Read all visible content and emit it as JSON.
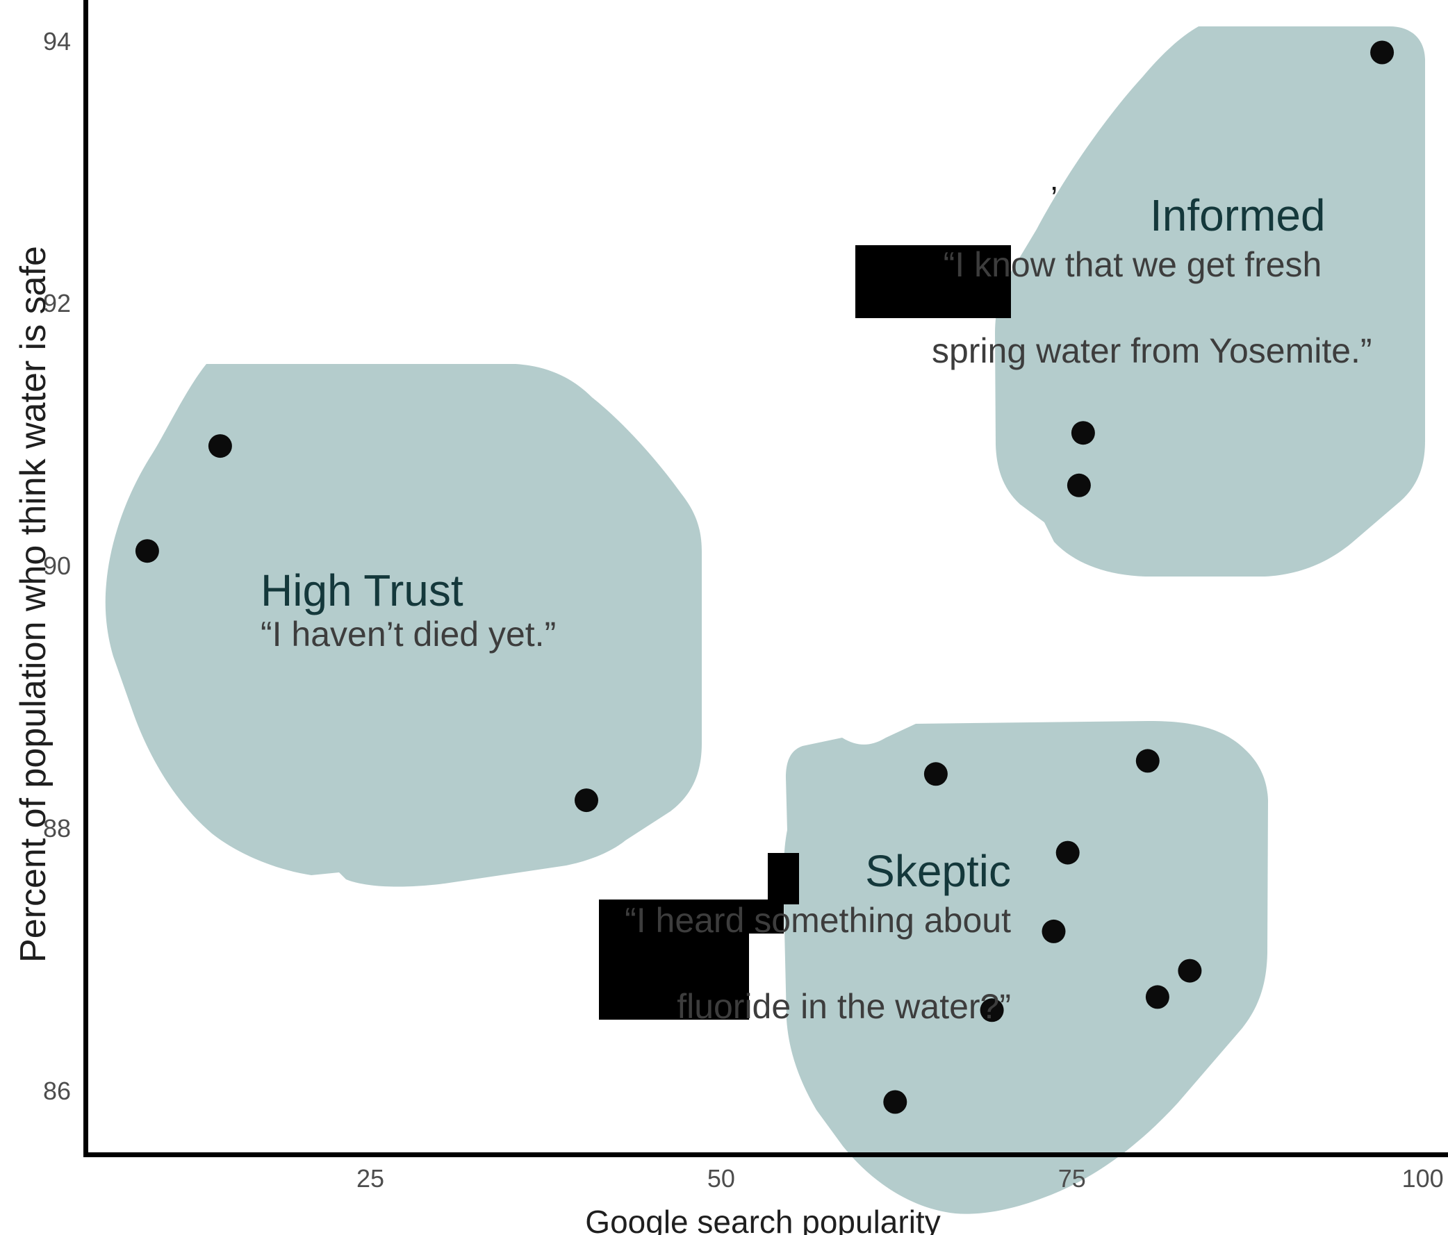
{
  "chart_data": {
    "type": "scatter",
    "title": "",
    "xlabel": "Google search popularity",
    "ylabel": "Percent of population who think water is safe",
    "xticks": [
      25,
      50,
      75,
      100
    ],
    "yticks": [
      86,
      88,
      90,
      92,
      94
    ],
    "xlim": [
      4.7,
      101.8
    ],
    "ylim": [
      85.5,
      94.3
    ],
    "grid": false,
    "legend": false,
    "panel": {
      "x0": 123,
      "y0": 0,
      "x1": 2084,
      "y1": 1662
    },
    "point_radius": 17,
    "point_color": "#0b0b0b",
    "blob_fill": "#b4cccc",
    "series": [
      {
        "name": "High Trust",
        "quote": "“I haven’t died yet.”",
        "points": [
          [
            14.3,
            90.9
          ],
          [
            9.1,
            90.1
          ],
          [
            40.4,
            88.2
          ]
        ]
      },
      {
        "name": "Informed",
        "quote": "“I know that we get fresh spring water from Yosemite.”",
        "points": [
          [
            97.1,
            93.9
          ],
          [
            75.8,
            91.0
          ],
          [
            75.5,
            90.6
          ]
        ]
      },
      {
        "name": "Skeptic",
        "quote": "“I heard something about fluoride in the water?”",
        "points": [
          [
            80.4,
            88.5
          ],
          [
            65.3,
            88.4
          ],
          [
            74.7,
            87.8
          ],
          [
            73.7,
            87.2
          ],
          [
            83.4,
            86.9
          ],
          [
            81.1,
            86.7
          ],
          [
            69.3,
            86.6
          ],
          [
            62.4,
            85.9
          ]
        ]
      }
    ]
  },
  "annotations": {
    "high_trust": {
      "title": "High Trust",
      "quote_line1": "“I haven’t died yet.”"
    },
    "informed": {
      "title": "Informed",
      "quote_line1": "“I know that we get fresh",
      "quote_line2": "spring water from Yosemite.”"
    },
    "skeptic": {
      "title": "Skeptic",
      "quote_line1": "“I heard something about",
      "quote_line2": "fluoride in the water?”"
    },
    "stray_mark": "’"
  },
  "colors": {
    "cluster_title": "#14383b",
    "quote_text": "#3d3d3d",
    "tick_label": "#4d4d4d",
    "axis_title": "#1f1f1f",
    "axis_line": "#000000",
    "glitch": "#000000",
    "background": "#ffffff"
  }
}
